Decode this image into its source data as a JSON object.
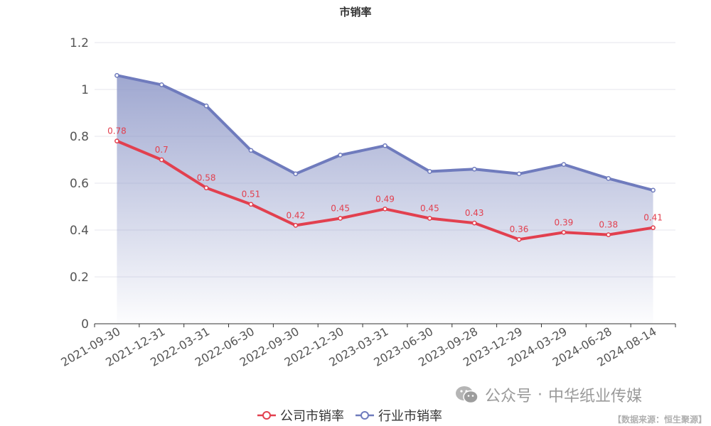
{
  "title": "市销率",
  "colors": {
    "company": "#e2404f",
    "industry": "#6f7bbd",
    "area_top": "#8e98c8",
    "grid": "#e4e6ee",
    "axis": "#333333",
    "tick_text": "#555555"
  },
  "legend": {
    "company": "公司市销率",
    "industry": "行业市销率"
  },
  "watermark": {
    "icon": "wechat-icon",
    "text": "公众号",
    "dot": "·",
    "name": "中华纸业传媒"
  },
  "source": "【数据来源：恒生聚源】",
  "chart_data": {
    "type": "line",
    "title": "市销率",
    "categories": [
      "2021-09-30",
      "2021-12-31",
      "2022-03-31",
      "2022-06-30",
      "2022-09-30",
      "2022-12-30",
      "2023-03-31",
      "2023-06-30",
      "2023-09-28",
      "2023-12-29",
      "2024-03-29",
      "2024-06-28",
      "2024-08-14"
    ],
    "ylim": [
      0,
      1.2
    ],
    "yticks": [
      0,
      0.2,
      0.4,
      0.6,
      0.8,
      1,
      1.2
    ],
    "yticklabels": [
      "0",
      "0.2",
      "0.4",
      "0.6",
      "0.8",
      "1",
      "1.2"
    ],
    "grid": true,
    "legend_position": "bottom-center",
    "series": [
      {
        "name": "公司市销率",
        "key": "company",
        "values": [
          0.78,
          0.7,
          0.58,
          0.51,
          0.42,
          0.45,
          0.49,
          0.45,
          0.43,
          0.36,
          0.39,
          0.38,
          0.41
        ],
        "data_labels": [
          "0.78",
          "0.7",
          "0.58",
          "0.51",
          "0.42",
          "0.45",
          "0.49",
          "0.45",
          "0.43",
          "0.36",
          "0.39",
          "0.38",
          "0.41"
        ]
      },
      {
        "name": "行业市销率",
        "key": "industry",
        "area": true,
        "values": [
          1.06,
          1.02,
          0.93,
          0.74,
          0.64,
          0.72,
          0.76,
          0.65,
          0.66,
          0.64,
          0.68,
          0.62,
          0.57
        ]
      }
    ]
  }
}
